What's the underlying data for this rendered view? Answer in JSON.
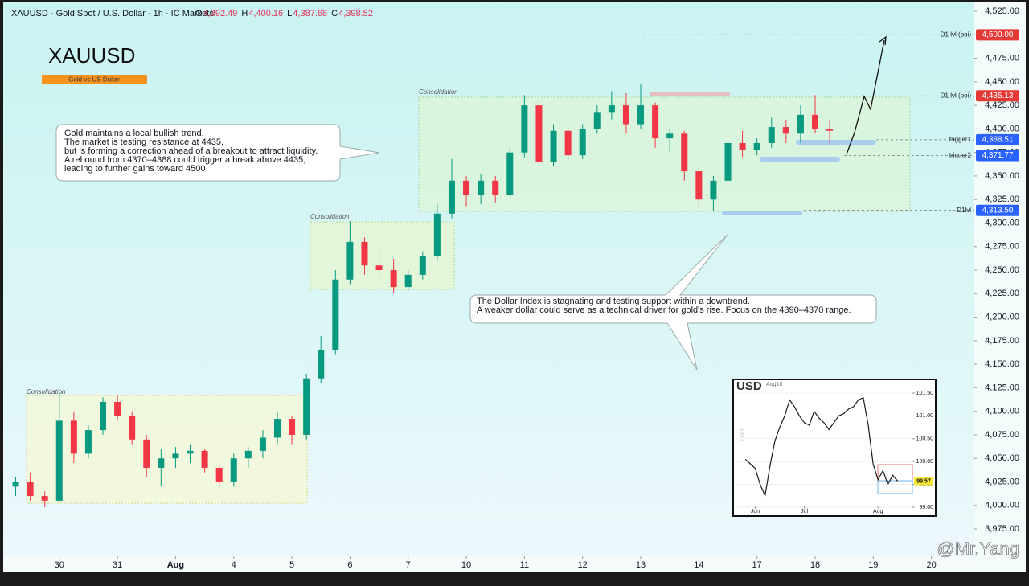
{
  "chart_data": [
    {
      "type": "candlestick",
      "header": {
        "symbol": "XAUUSD · Gold Spot / U.S. Dollar · 1h · IC Markets",
        "ohlc": [
          {
            "label": "O",
            "value": "4,392.49"
          },
          {
            "label": "H",
            "value": "4,400.16"
          },
          {
            "label": "L",
            "value": "4,387.68"
          },
          {
            "label": "C",
            "value": "4,398.52"
          }
        ]
      },
      "title": "XAUUSD",
      "subtitle": "Gold vs US Dollar",
      "up_color": "#089981",
      "down_color": "#f23645",
      "x": [
        -0.75,
        -0.5,
        -0.25,
        0,
        0.25,
        0.5,
        0.75,
        1,
        1.25,
        1.5,
        1.75,
        2,
        2.25,
        2.5,
        2.75,
        3,
        3.25,
        3.5,
        3.75,
        4,
        4.25,
        4.5,
        4.75,
        5,
        5.25,
        5.5,
        5.75,
        6,
        6.25,
        6.5,
        6.75,
        7,
        7.25,
        7.5,
        7.75,
        8,
        8.25,
        8.5,
        8.75,
        9,
        9.25,
        9.5,
        9.75,
        10,
        10.25,
        10.5,
        10.75,
        11,
        11.25,
        11.5,
        11.75,
        12,
        12.25,
        12.5,
        12.75,
        13,
        13.25
      ],
      "open": [
        4020,
        4025,
        4010,
        4005,
        4090,
        4055,
        4080,
        4110,
        4095,
        4070,
        4040,
        4050,
        4055,
        4058,
        4040,
        4025,
        4050,
        4058,
        4072,
        4092,
        4075,
        4135,
        4165,
        4240,
        4280,
        4255,
        4250,
        4232,
        4245,
        4265,
        4310,
        4345,
        4330,
        4345,
        4330,
        4375,
        4425,
        4365,
        4398,
        4372,
        4400,
        4418,
        4425,
        4405,
        4425,
        4390,
        4395,
        4355,
        4325,
        4345,
        4385,
        4378,
        4385,
        4402,
        4395,
        4415,
        4400
      ],
      "high": [
        4030,
        4035,
        4015,
        4120,
        4100,
        4085,
        4115,
        4118,
        4100,
        4075,
        4060,
        4062,
        4065,
        4060,
        4045,
        4055,
        4062,
        4080,
        4100,
        4095,
        4140,
        4180,
        4250,
        4302,
        4285,
        4270,
        4262,
        4250,
        4270,
        4320,
        4368,
        4350,
        4352,
        4350,
        4380,
        4436,
        4430,
        4405,
        4402,
        4405,
        4425,
        4440,
        4438,
        4448,
        4428,
        4400,
        4398,
        4360,
        4350,
        4395,
        4398,
        4390,
        4412,
        4410,
        4425,
        4436,
        4410
      ],
      "low": [
        4010,
        4005,
        3998,
        4003,
        4045,
        4050,
        4075,
        4090,
        4065,
        4030,
        4020,
        4040,
        4045,
        4035,
        4018,
        4020,
        4040,
        4050,
        4065,
        4065,
        4070,
        4130,
        4160,
        4235,
        4245,
        4240,
        4225,
        4228,
        4240,
        4260,
        4305,
        4318,
        4320,
        4322,
        4328,
        4370,
        4355,
        4360,
        4365,
        4368,
        4395,
        4410,
        4395,
        4400,
        4380,
        4375,
        4345,
        4318,
        4313,
        4340,
        4370,
        4372,
        4380,
        4385,
        4385,
        4395,
        4385
      ],
      "close": [
        4025,
        4010,
        4005,
        4090,
        4055,
        4080,
        4110,
        4095,
        4070,
        4040,
        4050,
        4055,
        4058,
        4040,
        4025,
        4050,
        4058,
        4072,
        4092,
        4075,
        4135,
        4165,
        4240,
        4280,
        4255,
        4250,
        4232,
        4245,
        4265,
        4310,
        4345,
        4330,
        4345,
        4330,
        4375,
        4425,
        4365,
        4398,
        4372,
        4400,
        4418,
        4425,
        4405,
        4425,
        4390,
        4395,
        4355,
        4325,
        4345,
        4385,
        4378,
        4385,
        4402,
        4395,
        4415,
        4400,
        4398
      ],
      "xlim": [
        -1.02,
        15.71
      ],
      "xticks": [
        {
          "value": 0,
          "label": "30"
        },
        {
          "value": 1,
          "label": "31"
        },
        {
          "value": 2,
          "label": "Aug"
        },
        {
          "value": 3,
          "label": "4"
        },
        {
          "value": 4,
          "label": "5"
        },
        {
          "value": 5,
          "label": "6"
        },
        {
          "value": 6,
          "label": "7"
        },
        {
          "value": 7,
          "label": "10"
        },
        {
          "value": 8,
          "label": "11"
        },
        {
          "value": 9,
          "label": "12"
        },
        {
          "value": 10,
          "label": "13"
        },
        {
          "value": 11,
          "label": "14"
        },
        {
          "value": 12,
          "label": "17"
        },
        {
          "value": 13,
          "label": "18"
        },
        {
          "value": 14,
          "label": "19"
        },
        {
          "value": 15,
          "label": "20"
        }
      ],
      "ylim": [
        3946,
        4537
      ],
      "yticks": [
        {
          "value": 3975,
          "label": "3,975.00"
        },
        {
          "value": 4000,
          "label": "4,000.00"
        },
        {
          "value": 4025,
          "label": "4,025.00"
        },
        {
          "value": 4050,
          "label": "4,050.00"
        },
        {
          "value": 4075,
          "label": "4,075.00"
        },
        {
          "value": 4100,
          "label": "4,100.00"
        },
        {
          "value": 4125,
          "label": "4,125.00"
        },
        {
          "value": 4150,
          "label": "4,150.00"
        },
        {
          "value": 4175,
          "label": "4,175.00"
        },
        {
          "value": 4200,
          "label": "4,200.00"
        },
        {
          "value": 4225,
          "label": "4,225.00"
        },
        {
          "value": 4250,
          "label": "4,250.00"
        },
        {
          "value": 4275,
          "label": "4,275.00"
        },
        {
          "value": 4300,
          "label": "4,300.00"
        },
        {
          "value": 4325,
          "label": "4,325.00"
        },
        {
          "value": 4350,
          "label": "4,350.00"
        },
        {
          "value": 4375,
          "label": "4,375.00"
        },
        {
          "value": 4400,
          "label": "4,400.00"
        },
        {
          "value": 4425,
          "label": "4,425.00"
        },
        {
          "value": 4450,
          "label": "4,450.00"
        },
        {
          "value": 4475,
          "label": "4,475.00"
        },
        {
          "value": 4500,
          "label": "4,500.00"
        },
        {
          "value": 4525,
          "label": "4,525.00"
        }
      ],
      "grid": false,
      "levels": [
        {
          "name": "D1 lvl (poi)",
          "value": 4500,
          "label": "4,500.00",
          "color": "#e53935"
        },
        {
          "name": "D1 lvl (poi)",
          "value": 4435.13,
          "label": "4,435.13",
          "color": "#e53935"
        },
        {
          "name": "trigger1",
          "value": 4388.51,
          "label": "4,388.51",
          "color": "#2962ff"
        },
        {
          "name": "trigger2",
          "value": 4371.77,
          "label": "4,371.77",
          "color": "#2962ff"
        },
        {
          "name": "D1lvl",
          "value": 4313.5,
          "label": "4,313.50",
          "color": "#2962ff"
        }
      ],
      "zones": [
        "Consolidation",
        "Consolidation",
        "Consolidation"
      ],
      "callouts": [
        [
          "Gold maintains a local bullish trend.",
          "The market is testing resistance at 4435,",
          "but is forming a correction ahead of a breakout to attract liquidity.",
          "A rebound from 4370–4388 could trigger a break above 4435,",
          "leading to further gains toward 4500"
        ],
        [
          "The Dollar Index is stagnating and testing support within a downtrend.",
          "A weaker dollar could serve as a technical driver for gold's rise. Focus on the 4390–4370 range."
        ]
      ],
      "watermark": "@Mr.Yang"
    },
    {
      "type": "line",
      "title": "USD",
      "subtitle": "Aug18",
      "ylabel": "DXY",
      "color": "#1b1b1b",
      "x": [
        0,
        1,
        2,
        3,
        4,
        5,
        6,
        7,
        8,
        9,
        10,
        11,
        12,
        13,
        14,
        15,
        16,
        17,
        18,
        19,
        20,
        21,
        22,
        23,
        24,
        25,
        26,
        27,
        28,
        29,
        30,
        31
      ],
      "values": [
        100.05,
        99.95,
        99.85,
        99.5,
        99.25,
        99.9,
        100.45,
        100.75,
        101.0,
        101.35,
        101.2,
        101.0,
        100.85,
        100.8,
        101.1,
        100.95,
        100.85,
        100.7,
        100.85,
        101.0,
        101.05,
        101.15,
        101.2,
        101.35,
        101.4,
        100.8,
        99.95,
        99.6,
        99.8,
        99.5,
        99.7,
        99.57
      ],
      "xlim": [
        -2,
        34
      ],
      "xticks": [
        {
          "value": 2,
          "label": "Jun"
        },
        {
          "value": 12,
          "label": "Jul"
        },
        {
          "value": 27,
          "label": "Aug"
        }
      ],
      "ylim": [
        98.84,
        101.8
      ],
      "yticks": [
        {
          "value": 99,
          "label": "99.00"
        },
        {
          "value": 99.5,
          "label": "99.50"
        },
        {
          "value": 100,
          "label": "100.00"
        },
        {
          "value": 100.5,
          "label": "100.50"
        },
        {
          "value": 101,
          "label": "101.00"
        },
        {
          "value": 101.5,
          "label": "101.50"
        }
      ],
      "last_price": 99.57
    }
  ]
}
